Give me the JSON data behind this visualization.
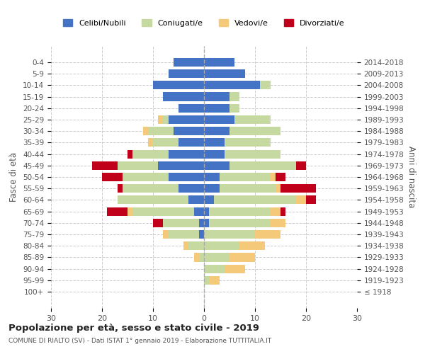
{
  "age_groups": [
    "100+",
    "95-99",
    "90-94",
    "85-89",
    "80-84",
    "75-79",
    "70-74",
    "65-69",
    "60-64",
    "55-59",
    "50-54",
    "45-49",
    "40-44",
    "35-39",
    "30-34",
    "25-29",
    "20-24",
    "15-19",
    "10-14",
    "5-9",
    "0-4"
  ],
  "birth_years": [
    "≤ 1918",
    "1919-1923",
    "1924-1928",
    "1929-1933",
    "1934-1938",
    "1939-1943",
    "1944-1948",
    "1949-1953",
    "1954-1958",
    "1959-1963",
    "1964-1968",
    "1969-1973",
    "1974-1978",
    "1979-1983",
    "1984-1988",
    "1989-1993",
    "1994-1998",
    "1999-2003",
    "2004-2008",
    "2009-2013",
    "2014-2018"
  ],
  "males": {
    "celibi": [
      0,
      0,
      0,
      0,
      0,
      1,
      1,
      2,
      3,
      5,
      7,
      9,
      7,
      5,
      6,
      7,
      5,
      8,
      10,
      7,
      6
    ],
    "coniugati": [
      0,
      0,
      0,
      1,
      3,
      6,
      7,
      12,
      14,
      11,
      9,
      8,
      7,
      5,
      5,
      1,
      0,
      0,
      0,
      0,
      0
    ],
    "vedovi": [
      0,
      0,
      0,
      1,
      1,
      1,
      0,
      1,
      0,
      0,
      0,
      0,
      0,
      1,
      1,
      1,
      0,
      0,
      0,
      0,
      0
    ],
    "divorziati": [
      0,
      0,
      0,
      0,
      0,
      0,
      2,
      4,
      0,
      1,
      4,
      5,
      1,
      0,
      0,
      0,
      0,
      0,
      0,
      0,
      0
    ]
  },
  "females": {
    "nubili": [
      0,
      0,
      0,
      0,
      0,
      0,
      1,
      1,
      2,
      3,
      3,
      5,
      4,
      4,
      5,
      6,
      5,
      5,
      11,
      8,
      6
    ],
    "coniugate": [
      0,
      1,
      4,
      5,
      7,
      10,
      12,
      12,
      16,
      11,
      10,
      13,
      11,
      9,
      10,
      7,
      2,
      2,
      2,
      0,
      0
    ],
    "vedove": [
      0,
      2,
      4,
      5,
      5,
      5,
      3,
      2,
      2,
      1,
      1,
      0,
      0,
      0,
      0,
      0,
      0,
      0,
      0,
      0,
      0
    ],
    "divorziate": [
      0,
      0,
      0,
      0,
      0,
      0,
      0,
      1,
      2,
      7,
      2,
      2,
      0,
      0,
      0,
      0,
      0,
      0,
      0,
      0,
      0
    ]
  },
  "colors": {
    "celibi": "#4472C4",
    "coniugati": "#C5D9A0",
    "vedovi": "#F5C97A",
    "divorziati": "#C0001A"
  },
  "xlim": 30,
  "title": "Popolazione per età, sesso e stato civile - 2019",
  "subtitle": "COMUNE DI RIALTO (SV) - Dati ISTAT 1° gennaio 2019 - Elaborazione TUTTITALIA.IT",
  "ylabel_left": "Fasce di età",
  "ylabel_right": "Anni di nascita",
  "legend_labels": [
    "Celibi/Nubili",
    "Coniugati/e",
    "Vedovi/e",
    "Divorziati/e"
  ]
}
